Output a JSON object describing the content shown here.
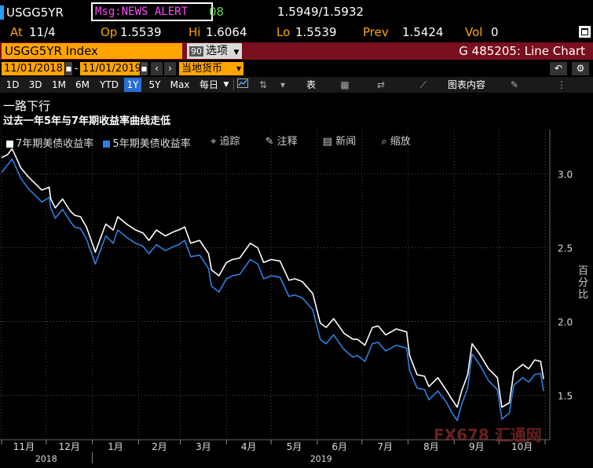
{
  "header": {
    "ticker": "USGG5YR",
    "msg_alert": "Msg:NEWS ALERT",
    "msg_tail": "08",
    "bid_ask": "1.5949/1.5932",
    "at_label": "At",
    "at_value": "11/4",
    "open_label": "Op",
    "open_value": "1.5539",
    "high_label": "Hi",
    "high_value": "1.6064",
    "low_label": "Lo",
    "low_value": "1.5539",
    "prev_label": "Prev",
    "prev_value": "1.5424",
    "vol_label": "Vol",
    "vol_value": "0"
  },
  "security_bar": {
    "security": "USGG5YR Index",
    "options_num": "90",
    "options_label": "选项",
    "chart_title": "G 485205: Line Chart"
  },
  "date_bar": {
    "start_date": "11/01/2018",
    "dash": "-",
    "end_date": "11/01/2019",
    "currency": "当地货币",
    "undo": "↶",
    "settings": "⚙"
  },
  "period_bar": {
    "periods": [
      "1D",
      "3D",
      "1M",
      "6M",
      "YTD",
      "1Y",
      "5Y",
      "Max"
    ],
    "active_period": "1Y",
    "interval": "每日",
    "table_label": "表",
    "chart_content": "图表内容"
  },
  "headline": {
    "title": "一路下行",
    "subtitle": "过去一年5年与7年期收益率曲线走低"
  },
  "legend": {
    "series_7y": "7年期美债收益率",
    "series_5y": "5年期美债收益率"
  },
  "tools": {
    "track": "追踪",
    "annotate": "注释",
    "news": "新闻",
    "zoom": "缩放"
  },
  "axis": {
    "y_title": "百分比",
    "month_labels": [
      "11月",
      "12月",
      "1月",
      "2月",
      "3月",
      "4月",
      "5月",
      "6月",
      "7月",
      "8月",
      "9月",
      "10月"
    ],
    "year_labels": [
      "2018",
      "2019"
    ],
    "y_ticks": [
      "3.0",
      "2.5",
      "2.0",
      "1.5"
    ]
  },
  "watermark": "FX678 汇通网",
  "colors": {
    "series_5y": "#2f7fe0",
    "series_7y": "#ffffff",
    "accent_orange": "#ffa500",
    "bar_red": "#7a0f1d"
  },
  "chart_data": {
    "type": "line",
    "ylabel": "百分比",
    "ylim": [
      1.2,
      3.3
    ],
    "y_ticks": [
      3.0,
      2.5,
      2.0,
      1.5
    ],
    "x_start": "2018-11-01",
    "x_end": "2019-11-01",
    "series": [
      {
        "name": "5年期美债收益率",
        "color": "#2f7fe0",
        "points": [
          [
            "2018-11-01",
            3.01
          ],
          [
            "2018-11-05",
            3.06
          ],
          [
            "2018-11-08",
            3.1
          ],
          [
            "2018-11-09",
            3.08
          ],
          [
            "2018-11-14",
            2.97
          ],
          [
            "2018-11-19",
            2.9
          ],
          [
            "2018-11-23",
            2.86
          ],
          [
            "2018-11-28",
            2.81
          ],
          [
            "2018-12-03",
            2.84
          ],
          [
            "2018-12-04",
            2.77
          ],
          [
            "2018-12-07",
            2.7
          ],
          [
            "2018-12-12",
            2.76
          ],
          [
            "2018-12-17",
            2.68
          ],
          [
            "2018-12-20",
            2.64
          ],
          [
            "2018-12-24",
            2.63
          ],
          [
            "2018-12-28",
            2.56
          ],
          [
            "2019-01-03",
            2.39
          ],
          [
            "2019-01-07",
            2.5
          ],
          [
            "2019-01-10",
            2.58
          ],
          [
            "2019-01-15",
            2.53
          ],
          [
            "2019-01-18",
            2.62
          ],
          [
            "2019-01-24",
            2.57
          ],
          [
            "2019-01-30",
            2.53
          ],
          [
            "2019-02-04",
            2.51
          ],
          [
            "2019-02-08",
            2.46
          ],
          [
            "2019-02-13",
            2.52
          ],
          [
            "2019-02-19",
            2.48
          ],
          [
            "2019-02-25",
            2.51
          ],
          [
            "2019-02-28",
            2.52
          ],
          [
            "2019-03-04",
            2.55
          ],
          [
            "2019-03-08",
            2.44
          ],
          [
            "2019-03-14",
            2.45
          ],
          [
            "2019-03-20",
            2.36
          ],
          [
            "2019-03-22",
            2.24
          ],
          [
            "2019-03-27",
            2.2
          ],
          [
            "2019-04-01",
            2.29
          ],
          [
            "2019-04-05",
            2.31
          ],
          [
            "2019-04-10",
            2.32
          ],
          [
            "2019-04-17",
            2.42
          ],
          [
            "2019-04-22",
            2.39
          ],
          [
            "2019-04-26",
            2.29
          ],
          [
            "2019-05-01",
            2.31
          ],
          [
            "2019-05-07",
            2.3
          ],
          [
            "2019-05-13",
            2.17
          ],
          [
            "2019-05-17",
            2.18
          ],
          [
            "2019-05-22",
            2.16
          ],
          [
            "2019-05-29",
            2.08
          ],
          [
            "2019-06-03",
            1.88
          ],
          [
            "2019-06-07",
            1.85
          ],
          [
            "2019-06-12",
            1.91
          ],
          [
            "2019-06-19",
            1.81
          ],
          [
            "2019-06-25",
            1.76
          ],
          [
            "2019-06-28",
            1.77
          ],
          [
            "2019-07-03",
            1.73
          ],
          [
            "2019-07-08",
            1.85
          ],
          [
            "2019-07-12",
            1.86
          ],
          [
            "2019-07-17",
            1.8
          ],
          [
            "2019-07-24",
            1.84
          ],
          [
            "2019-07-31",
            1.82
          ],
          [
            "2019-08-02",
            1.67
          ],
          [
            "2019-08-07",
            1.55
          ],
          [
            "2019-08-12",
            1.54
          ],
          [
            "2019-08-15",
            1.47
          ],
          [
            "2019-08-21",
            1.53
          ],
          [
            "2019-08-27",
            1.45
          ],
          [
            "2019-08-30",
            1.39
          ],
          [
            "2019-09-03",
            1.33
          ],
          [
            "2019-09-06",
            1.44
          ],
          [
            "2019-09-10",
            1.55
          ],
          [
            "2019-09-13",
            1.78
          ],
          [
            "2019-09-18",
            1.71
          ],
          [
            "2019-09-24",
            1.6
          ],
          [
            "2019-09-30",
            1.54
          ],
          [
            "2019-10-03",
            1.34
          ],
          [
            "2019-10-08",
            1.38
          ],
          [
            "2019-10-11",
            1.57
          ],
          [
            "2019-10-17",
            1.62
          ],
          [
            "2019-10-21",
            1.59
          ],
          [
            "2019-10-25",
            1.64
          ],
          [
            "2019-10-29",
            1.65
          ],
          [
            "2019-10-31",
            1.53
          ]
        ]
      },
      {
        "name": "7年期美债收益率",
        "color": "#ffffff",
        "points": [
          [
            "2018-11-01",
            3.11
          ],
          [
            "2018-11-05",
            3.13
          ],
          [
            "2018-11-08",
            3.17
          ],
          [
            "2018-11-09",
            3.15
          ],
          [
            "2018-11-14",
            3.04
          ],
          [
            "2018-11-19",
            2.98
          ],
          [
            "2018-11-23",
            2.94
          ],
          [
            "2018-11-28",
            2.89
          ],
          [
            "2018-12-03",
            2.91
          ],
          [
            "2018-12-04",
            2.83
          ],
          [
            "2018-12-07",
            2.77
          ],
          [
            "2018-12-12",
            2.83
          ],
          [
            "2018-12-17",
            2.75
          ],
          [
            "2018-12-20",
            2.72
          ],
          [
            "2018-12-24",
            2.71
          ],
          [
            "2018-12-28",
            2.64
          ],
          [
            "2019-01-03",
            2.47
          ],
          [
            "2019-01-07",
            2.58
          ],
          [
            "2019-01-10",
            2.66
          ],
          [
            "2019-01-15",
            2.62
          ],
          [
            "2019-01-18",
            2.71
          ],
          [
            "2019-01-24",
            2.66
          ],
          [
            "2019-01-30",
            2.62
          ],
          [
            "2019-02-04",
            2.6
          ],
          [
            "2019-02-08",
            2.55
          ],
          [
            "2019-02-13",
            2.62
          ],
          [
            "2019-02-19",
            2.58
          ],
          [
            "2019-02-25",
            2.61
          ],
          [
            "2019-02-28",
            2.62
          ],
          [
            "2019-03-04",
            2.64
          ],
          [
            "2019-03-08",
            2.53
          ],
          [
            "2019-03-14",
            2.55
          ],
          [
            "2019-03-20",
            2.46
          ],
          [
            "2019-03-22",
            2.35
          ],
          [
            "2019-03-27",
            2.31
          ],
          [
            "2019-04-01",
            2.4
          ],
          [
            "2019-04-05",
            2.42
          ],
          [
            "2019-04-10",
            2.43
          ],
          [
            "2019-04-17",
            2.53
          ],
          [
            "2019-04-22",
            2.5
          ],
          [
            "2019-04-26",
            2.4
          ],
          [
            "2019-05-01",
            2.42
          ],
          [
            "2019-05-07",
            2.41
          ],
          [
            "2019-05-13",
            2.28
          ],
          [
            "2019-05-17",
            2.29
          ],
          [
            "2019-05-22",
            2.27
          ],
          [
            "2019-05-29",
            2.19
          ],
          [
            "2019-06-03",
            1.99
          ],
          [
            "2019-06-07",
            1.96
          ],
          [
            "2019-06-12",
            2.02
          ],
          [
            "2019-06-19",
            1.92
          ],
          [
            "2019-06-25",
            1.88
          ],
          [
            "2019-06-28",
            1.88
          ],
          [
            "2019-07-03",
            1.84
          ],
          [
            "2019-07-08",
            1.96
          ],
          [
            "2019-07-12",
            1.97
          ],
          [
            "2019-07-17",
            1.91
          ],
          [
            "2019-07-24",
            1.95
          ],
          [
            "2019-07-31",
            1.93
          ],
          [
            "2019-08-02",
            1.77
          ],
          [
            "2019-08-07",
            1.64
          ],
          [
            "2019-08-12",
            1.63
          ],
          [
            "2019-08-15",
            1.56
          ],
          [
            "2019-08-21",
            1.62
          ],
          [
            "2019-08-27",
            1.53
          ],
          [
            "2019-08-30",
            1.48
          ],
          [
            "2019-09-03",
            1.42
          ],
          [
            "2019-09-06",
            1.53
          ],
          [
            "2019-09-10",
            1.64
          ],
          [
            "2019-09-13",
            1.85
          ],
          [
            "2019-09-18",
            1.78
          ],
          [
            "2019-09-24",
            1.68
          ],
          [
            "2019-09-30",
            1.62
          ],
          [
            "2019-10-03",
            1.42
          ],
          [
            "2019-10-08",
            1.45
          ],
          [
            "2019-10-11",
            1.66
          ],
          [
            "2019-10-17",
            1.71
          ],
          [
            "2019-10-21",
            1.68
          ],
          [
            "2019-10-25",
            1.74
          ],
          [
            "2019-10-29",
            1.73
          ],
          [
            "2019-10-31",
            1.61
          ]
        ]
      }
    ]
  }
}
